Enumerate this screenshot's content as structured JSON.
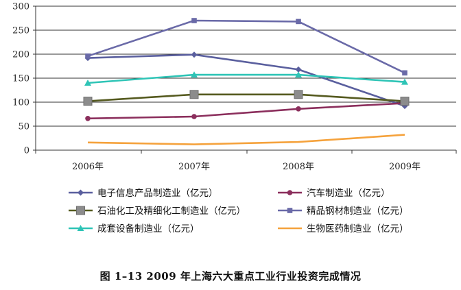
{
  "chart_data": {
    "type": "line",
    "title": "",
    "xlabel": "",
    "ylabel": "",
    "ylim": [
      0,
      300
    ],
    "yticks": [
      0,
      50,
      100,
      150,
      200,
      250,
      300
    ],
    "categories": [
      "2006年",
      "2007年",
      "2008年",
      "2009年"
    ],
    "grid": "horizontal",
    "legend_position": "bottom",
    "series": [
      {
        "name": "电子信息产品制造业（亿元）",
        "values": [
          192,
          199,
          168,
          92
        ],
        "color": "#5a5f9e",
        "marker": "diamond"
      },
      {
        "name": "汽车制造业（亿元）",
        "values": [
          66,
          70,
          86,
          98
        ],
        "color": "#8b2e5c",
        "marker": "circle"
      },
      {
        "name": "石油化工及精细化工制造业（亿元）",
        "values": [
          102,
          116,
          116,
          102
        ],
        "color": "#555a1f",
        "marker": "square-big"
      },
      {
        "name": "精品钢材制造业（亿元）",
        "values": [
          196,
          270,
          268,
          161
        ],
        "color": "#6a6aa8",
        "marker": "square"
      },
      {
        "name": "成套设备制造业（亿元）",
        "values": [
          140,
          157,
          157,
          142
        ],
        "color": "#2ec4b6",
        "marker": "triangle"
      },
      {
        "name": "生物医药制造业（亿元）",
        "values": [
          16,
          12,
          17,
          32
        ],
        "color": "#f5a23c",
        "marker": "none"
      }
    ]
  },
  "caption": "图 1–13    2009 年上海六大重点工业行业投资完成情况"
}
